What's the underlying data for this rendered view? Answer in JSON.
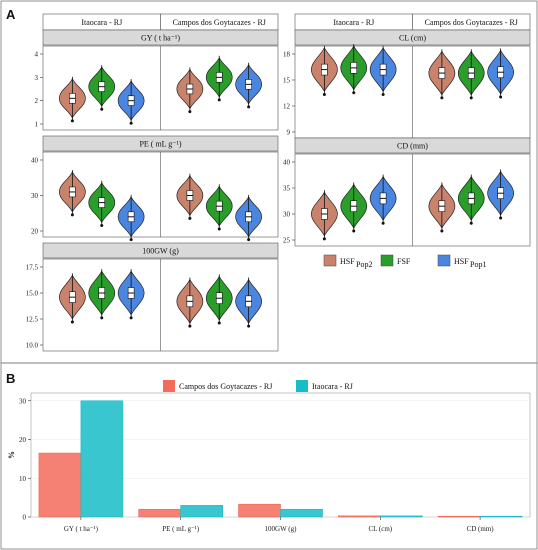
{
  "panel_a": {
    "label": "A"
  },
  "panel_b": {
    "label": "B"
  },
  "locations": [
    "Itaocara - RJ",
    "Campos dos Goytacazes - RJ"
  ],
  "legend_a": [
    {
      "name": "HSF",
      "sub": "Pop2",
      "color": "#c9826c"
    },
    {
      "name": "FSF",
      "sub": "",
      "color": "#2a9d2a"
    },
    {
      "name": "HSF",
      "sub": "Pop1",
      "color": "#4a86e0"
    }
  ],
  "violin_panels": [
    {
      "title": "GY ( t ha⁻¹)",
      "yticks": [
        "1",
        "2",
        "3",
        "4"
      ],
      "medians": [
        [
          2.1,
          2.6,
          2.0
        ],
        [
          2.5,
          3.0,
          2.7
        ]
      ]
    },
    {
      "title": "PE ( mL g⁻¹)",
      "yticks": [
        "20",
        "30",
        "40"
      ],
      "medians": [
        [
          31,
          28,
          24
        ],
        [
          30,
          27,
          24
        ]
      ]
    },
    {
      "title": "100GW (g)",
      "yticks": [
        "10.0",
        "12.5",
        "15.0",
        "17.5"
      ],
      "medians": [
        [
          14.6,
          15.0,
          15.0
        ],
        [
          14.2,
          14.5,
          14.2
        ]
      ]
    },
    {
      "title": "CL (cm)",
      "yticks": [
        "9",
        "12",
        "15",
        "18"
      ],
      "medians": [
        [
          16.2,
          16.4,
          16.2
        ],
        [
          15.8,
          15.8,
          15.9
        ]
      ]
    },
    {
      "title": "CD (mm)",
      "yticks": [
        "25",
        "30",
        "35",
        "40"
      ],
      "medians": [
        [
          30,
          31.5,
          33
        ],
        [
          31.5,
          33,
          34
        ]
      ]
    }
  ],
  "chart_data": {
    "type": "bar",
    "ylabel": "%",
    "categories": [
      "GY ( t ha⁻¹)",
      "PE ( mL g⁻¹)",
      "100GW (g)",
      "CL (cm)",
      "CD (mm)"
    ],
    "yticks": [
      "0",
      "10",
      "20",
      "30"
    ],
    "ylim": [
      0,
      32
    ],
    "series": [
      {
        "name": "Campos dos Goytacazes - RJ",
        "color": "#f26b5b",
        "values": [
          16.5,
          2.0,
          3.3,
          0.3,
          0.2
        ]
      },
      {
        "name": "Itaocara - RJ",
        "color": "#18bcc6",
        "values": [
          30.0,
          3.0,
          2.0,
          0.3,
          0.2
        ]
      }
    ]
  }
}
